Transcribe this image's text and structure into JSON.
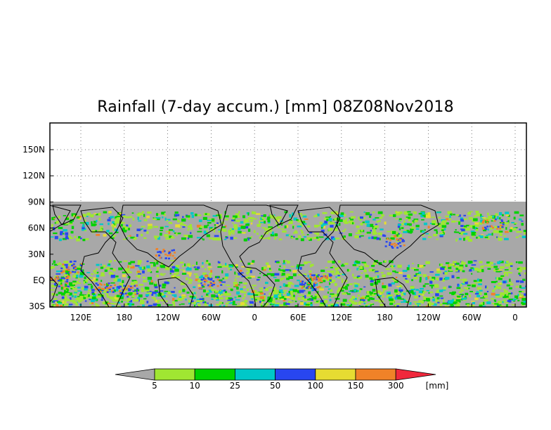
{
  "title": "Rainfall (7-day accum.) [mm] 08Z08Nov2018",
  "map": {
    "projection": "cylindrical",
    "lat_range": [
      "30S",
      "180N"
    ],
    "lon_ticks": [
      "120E",
      "180",
      "120W",
      "60W",
      "0",
      "60E",
      "120E",
      "180",
      "120W",
      "60W",
      "0"
    ],
    "lat_ticks": [
      "150N",
      "120N",
      "90N",
      "60N",
      "30N",
      "EQ",
      "30S"
    ],
    "grid": "dotted",
    "no_data_color": "#a8a8a8",
    "coastline_color": "#000000"
  },
  "colorbar": {
    "unit": "[mm]",
    "under_color": "#a8a8a8",
    "over_color": "#f0283c",
    "bins": [
      {
        "color": "#a0e632"
      },
      {
        "color": "#00d200"
      },
      {
        "color": "#00c8c8"
      },
      {
        "color": "#2846f0"
      },
      {
        "color": "#e6dc32"
      },
      {
        "color": "#f08228"
      }
    ],
    "labels": [
      "5",
      "10",
      "25",
      "50",
      "100",
      "150",
      "300"
    ]
  }
}
